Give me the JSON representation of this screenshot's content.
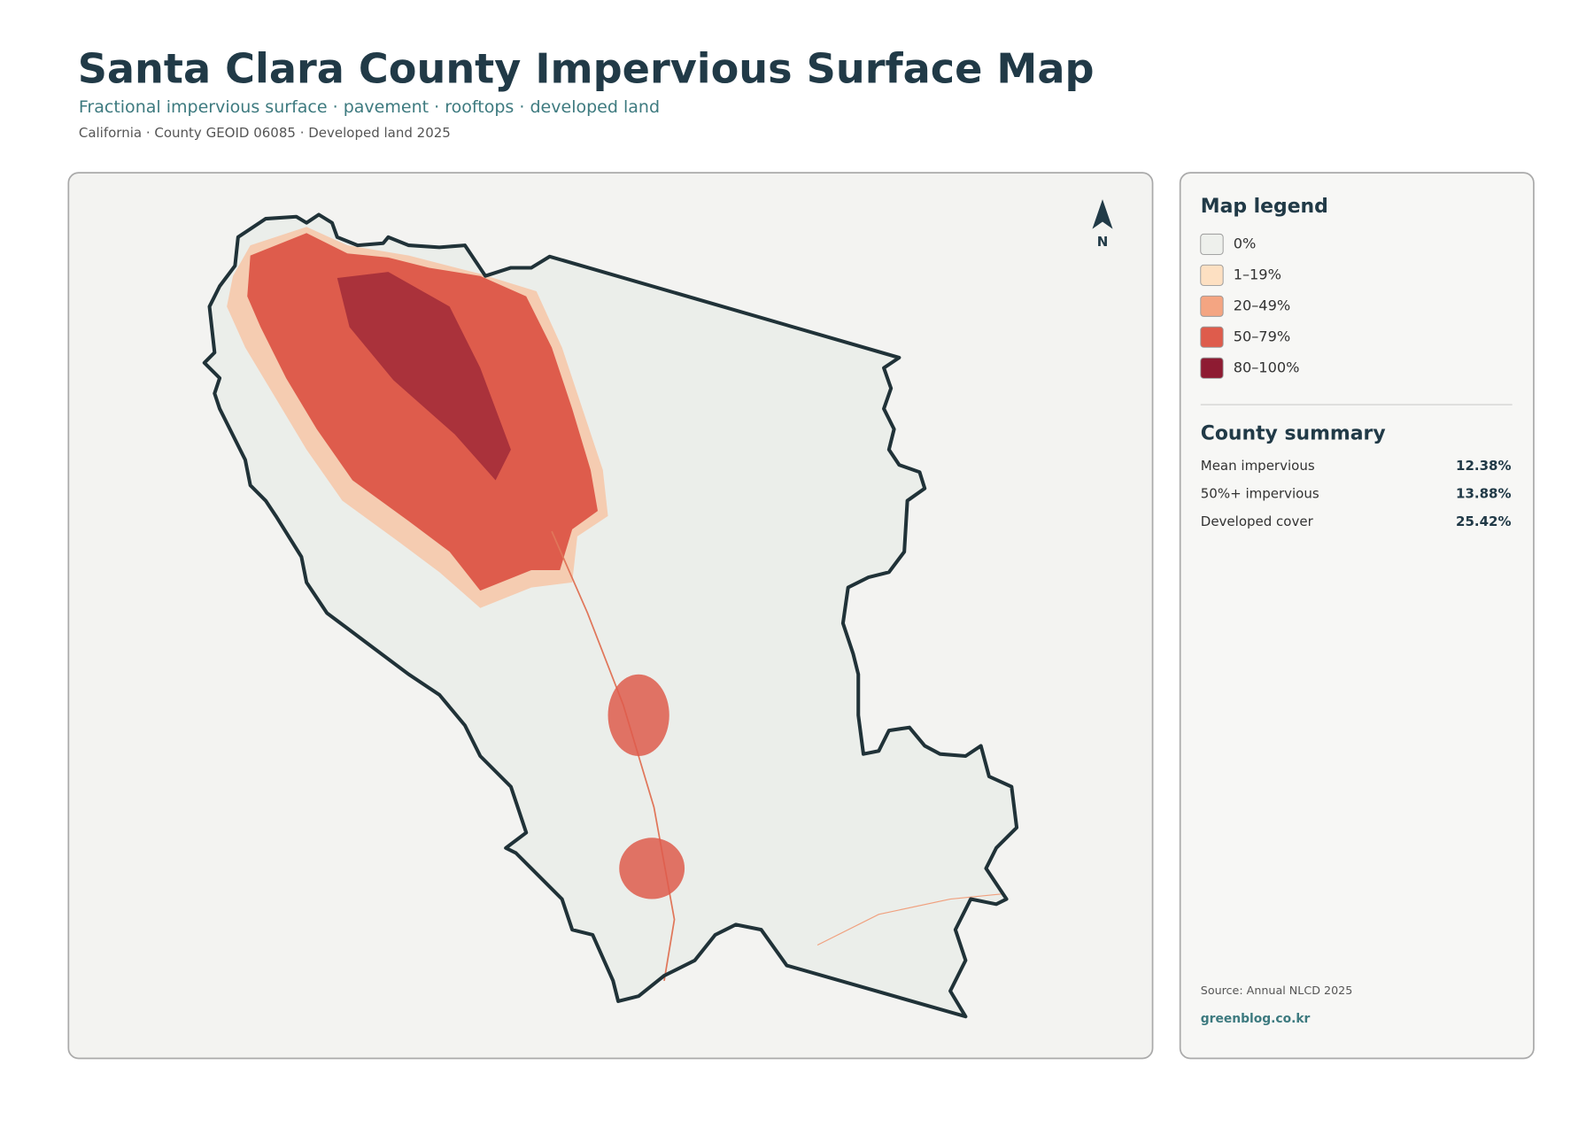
{
  "header": {
    "title": "Santa Clara County Impervious Surface Map",
    "subtitle": "Fractional impervious surface · pavement · rooftops · developed land",
    "meta": "California · County GEOID 06085 · Developed land 2025"
  },
  "map": {
    "north_label": "N"
  },
  "legend": {
    "title": "Map legend",
    "items": [
      {
        "label": "0%",
        "color": "#eef0ec"
      },
      {
        "label": "1–19%",
        "color": "#fde0c2"
      },
      {
        "label": "20–49%",
        "color": "#f4a582"
      },
      {
        "label": "50–79%",
        "color": "#de5c4c"
      },
      {
        "label": "80–100%",
        "color": "#8e1b32"
      }
    ]
  },
  "summary": {
    "title": "County summary",
    "rows": [
      {
        "label": "Mean impervious",
        "value": "12.38%"
      },
      {
        "label": "50%+ impervious",
        "value": "13.88%"
      },
      {
        "label": "Developed cover",
        "value": "25.42%"
      }
    ]
  },
  "footer": {
    "source": "Source: Annual NLCD 2025",
    "credit": "greenblog.co.kr"
  }
}
